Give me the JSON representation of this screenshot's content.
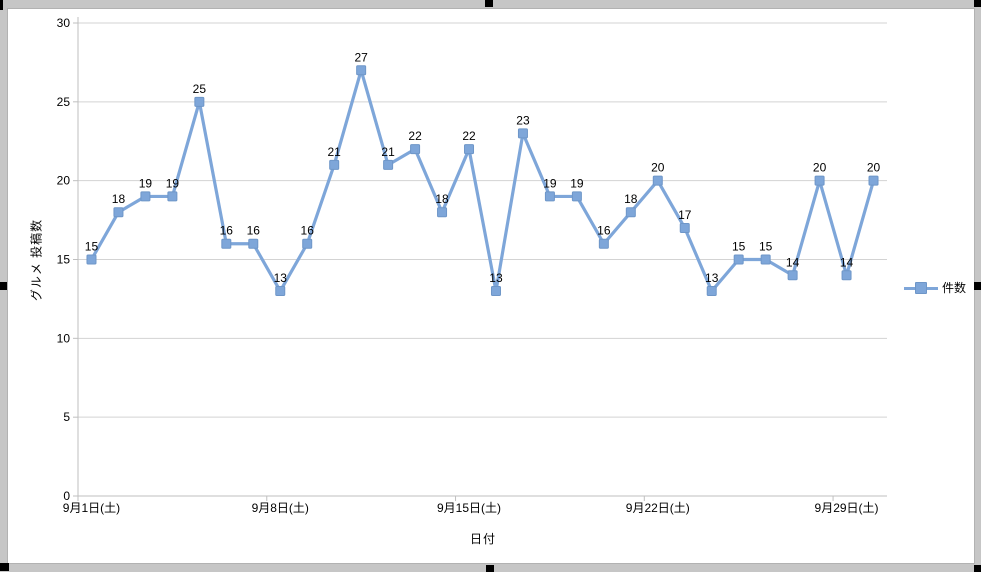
{
  "chart_data": {
    "type": "line",
    "title": "",
    "series": [
      {
        "name": "件数",
        "values": [
          15,
          18,
          19,
          19,
          25,
          16,
          16,
          13,
          16,
          21,
          27,
          21,
          22,
          18,
          22,
          13,
          23,
          19,
          19,
          16,
          18,
          20,
          17,
          13,
          15,
          15,
          14,
          20,
          14,
          20
        ]
      }
    ],
    "num_points": 30,
    "x_tick_labels": [
      "9月1日(土)",
      "9月8日(土)",
      "9月15日(土)",
      "9月22日(土)",
      "9月29日(土)"
    ],
    "x_tick_category_indexes": [
      1,
      8,
      15,
      22,
      29
    ],
    "xlabel": "日付",
    "ylabel": "グルメ 投稿数",
    "ylim": [
      0,
      30
    ],
    "y_tick_step": 5,
    "y_tick_labels": [
      "0",
      "5",
      "10",
      "15",
      "20",
      "25",
      "30"
    ],
    "grid": true,
    "data_labels_shown": true,
    "legend_position": "right",
    "colors": {
      "series": "#7ea6d9",
      "marker_border": "#6e96c8",
      "gridline": "#d3d3d3",
      "axis": "#bfbfbf",
      "label_text": "#000000",
      "chart_background": "#ffffff",
      "outer_background": "#c6c6c6",
      "selection_handle": "#000000"
    }
  },
  "legend": {
    "entry": "件数"
  }
}
